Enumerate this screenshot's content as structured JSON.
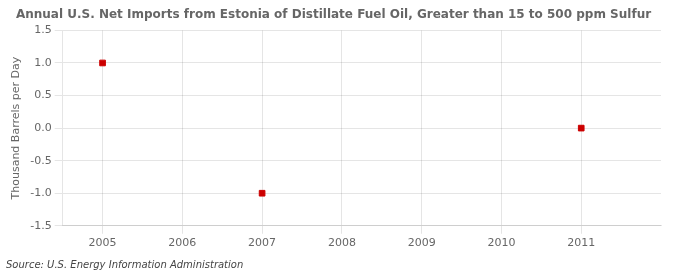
{
  "chart_data": {
    "type": "scatter",
    "title": "Annual U.S. Net Imports from Estonia of Distillate Fuel Oil, Greater than 15 to 500 ppm Sulfur",
    "y_label": "Thousand Barrels per Day",
    "annotations": [
      "Source: U.S. Energy Information Administration"
    ],
    "x": [
      2005,
      2007,
      2011
    ],
    "values": [
      1.0,
      -1.0,
      0.0
    ],
    "color": "#CC0000",
    "marker": "square",
    "xlim": [
      2004.5,
      2012.0
    ],
    "ylim": [
      -1.5,
      1.5
    ],
    "xticks": [
      2005,
      2006,
      2007,
      2008,
      2009,
      2010,
      2011
    ],
    "yticks": [
      -1.5,
      {
        "value": -1.0,
        "label": "-1.0"
      },
      -0.5,
      {
        "value": 0.0,
        "label": "0.0"
      },
      0.5,
      {
        "value": 1.0,
        "label": "1.0"
      },
      1.5
    ],
    "grid": true
  }
}
